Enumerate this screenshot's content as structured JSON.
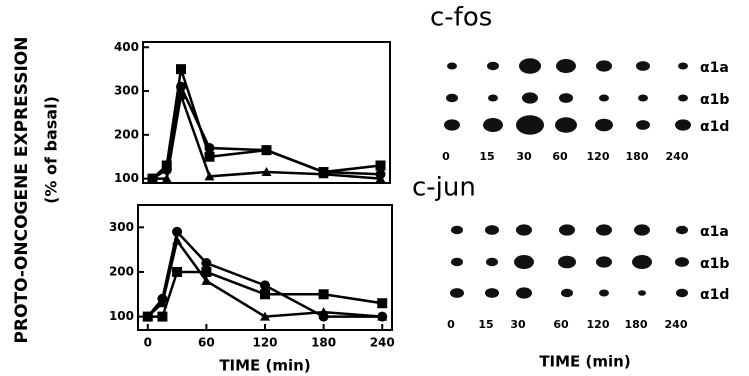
{
  "ylabel": "PROTO-ONCOGENE EXPRESSION",
  "ylabel2": "(% of basal)",
  "chart_data": [
    {
      "type": "line",
      "title": "c-fos",
      "x": [
        0,
        15,
        30,
        60,
        120,
        180,
        240
      ],
      "xlim": [
        -10,
        250
      ],
      "ylim": [
        90,
        412
      ],
      "yticks": [
        100,
        200,
        300,
        400
      ],
      "series": [
        {
          "color": "#000000",
          "marker": "square",
          "values": [
            100,
            130,
            350,
            150,
            165,
            115,
            130
          ]
        },
        {
          "color": "#000000",
          "marker": "circle",
          "values": [
            100,
            120,
            310,
            170,
            165,
            115,
            110
          ]
        },
        {
          "color": "#000000",
          "marker": "triangle",
          "values": [
            100,
            100,
            290,
            105,
            115,
            110,
            100
          ]
        }
      ]
    },
    {
      "type": "line",
      "title": "c-jun",
      "xlabel": "TIME (min)",
      "x": [
        0,
        15,
        30,
        60,
        120,
        180,
        240
      ],
      "xlim": [
        -10,
        250
      ],
      "xticks": [
        0,
        60,
        120,
        180,
        240
      ],
      "ylim": [
        70,
        350
      ],
      "yticks": [
        100,
        200,
        300
      ],
      "series": [
        {
          "color": "#000000",
          "marker": "square",
          "values": [
            100,
            100,
            200,
            200,
            150,
            150,
            130
          ]
        },
        {
          "color": "#000000",
          "marker": "circle",
          "values": [
            100,
            140,
            290,
            220,
            170,
            100,
            100
          ]
        },
        {
          "color": "#000000",
          "marker": "triangle",
          "values": [
            100,
            130,
            270,
            180,
            100,
            110,
            100
          ]
        }
      ]
    }
  ],
  "blots": [
    {
      "rows": [
        "α1a",
        "α1b",
        "α1d"
      ],
      "columns": [
        "0",
        "15",
        "30",
        "60",
        "120",
        "180",
        "240"
      ]
    },
    {
      "rows": [
        "α1a",
        "α1b",
        "α1d"
      ],
      "columns": [
        "0",
        "15",
        "30",
        "60",
        "120",
        "180",
        "240"
      ]
    }
  ],
  "blot_xlabel": "TIME (min)"
}
